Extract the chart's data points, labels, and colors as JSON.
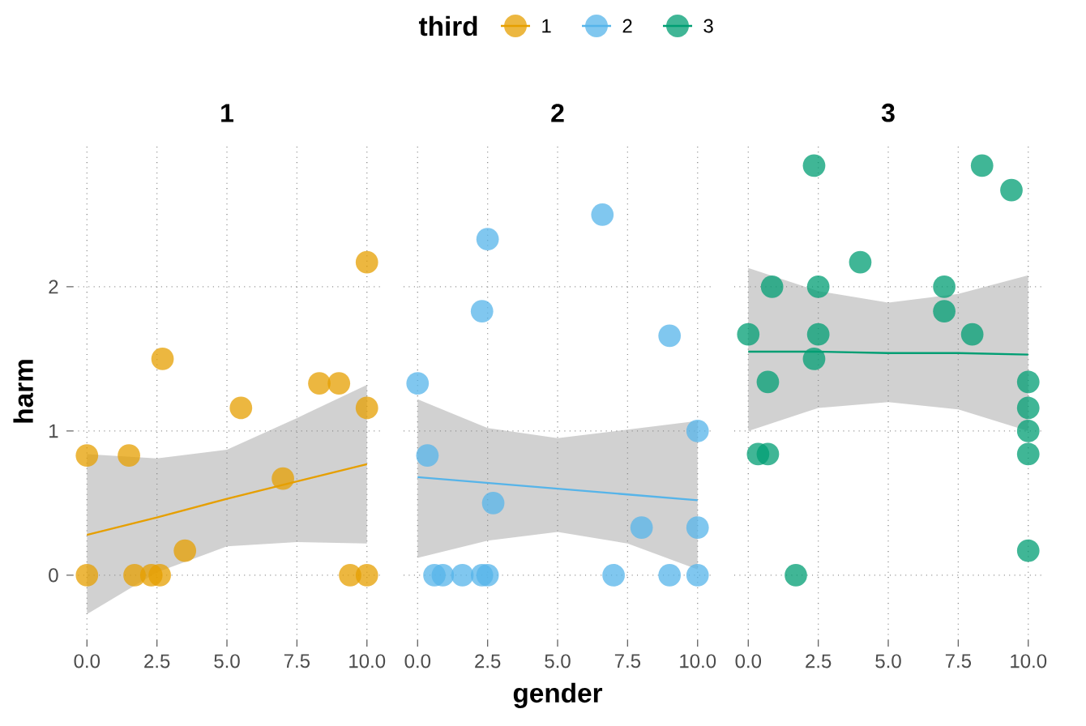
{
  "chart_data": [
    {
      "type": "scatter",
      "title": "1",
      "ylabel": "harm",
      "legend_title": "third",
      "legend": "top",
      "grid": true,
      "xlim": [
        -0.5,
        10.5
      ],
      "ylim": [
        -0.45,
        3.0
      ],
      "xticks": [
        {
          "value": 0,
          "label": "0.0"
        },
        {
          "value": 2.5,
          "label": "2.5"
        },
        {
          "value": 5,
          "label": "5.0"
        },
        {
          "value": 7.5,
          "label": "7.5"
        },
        {
          "value": 10,
          "label": "10.0"
        }
      ],
      "yticks": [
        0,
        1,
        2
      ],
      "series": [
        {
          "name": "1",
          "marker": "circle",
          "color": "#e69f00",
          "x": [
            0,
            0,
            1.5,
            1.7,
            2.3,
            2.6,
            2.7,
            3.5,
            5.5,
            7.0,
            8.3,
            9.0,
            9.4,
            10,
            10,
            10
          ],
          "values": [
            0,
            0.83,
            0.83,
            0,
            0,
            0,
            1.5,
            0.17,
            1.16,
            0.67,
            1.33,
            1.33,
            0,
            0,
            2.17,
            1.16
          ]
        },
        {
          "type": "line",
          "marker": "none",
          "color": "#e69f00",
          "x": [
            0,
            2.5,
            5,
            7.5,
            10
          ],
          "values": [
            0.28,
            0.4,
            0.53,
            0.65,
            0.77
          ],
          "lower": [
            -0.27,
            0.02,
            0.2,
            0.23,
            0.22
          ],
          "upper": [
            0.84,
            0.81,
            0.87,
            1.09,
            1.32
          ]
        }
      ]
    },
    {
      "type": "scatter",
      "title": "2",
      "xlabel": "gender",
      "legend": "top",
      "grid": true,
      "tick_labels": "x",
      "xlim": [
        -0.5,
        10.5
      ],
      "ylim": [
        -0.45,
        3.0
      ],
      "xticks": [
        {
          "value": 0,
          "label": "0.0"
        },
        {
          "value": 2.5,
          "label": "2.5"
        },
        {
          "value": 5,
          "label": "5.0"
        },
        {
          "value": 7.5,
          "label": "7.5"
        },
        {
          "value": 10,
          "label": "10.0"
        }
      ],
      "yticks": [
        0,
        1,
        2
      ],
      "series": [
        {
          "name": "2",
          "marker": "circle",
          "color": "#56b4e9",
          "x": [
            0,
            0.35,
            0.6,
            0.9,
            1.6,
            2.3,
            2.5,
            2.3,
            2.5,
            2.7,
            6.6,
            7.0,
            8.0,
            9.0,
            9.0,
            10,
            10,
            10
          ],
          "values": [
            1.33,
            0.83,
            0,
            0,
            0,
            0,
            0,
            1.83,
            2.33,
            0.5,
            2.5,
            0,
            0.33,
            1.66,
            0,
            0,
            0.33,
            1.0
          ]
        },
        {
          "type": "line",
          "marker": "none",
          "color": "#56b4e9",
          "x": [
            0,
            2.5,
            5,
            7.5,
            10
          ],
          "values": [
            0.68,
            0.64,
            0.6,
            0.56,
            0.52
          ],
          "lower": [
            0.12,
            0.24,
            0.3,
            0.22,
            0.04
          ],
          "upper": [
            1.22,
            1.02,
            0.95,
            1.01,
            1.07
          ]
        }
      ]
    },
    {
      "type": "scatter",
      "title": "3",
      "legend": "top",
      "grid": true,
      "tick_labels": "x",
      "xlim": [
        -0.5,
        10.5
      ],
      "ylim": [
        -0.45,
        3.0
      ],
      "xticks": [
        {
          "value": 0,
          "label": "0.0"
        },
        {
          "value": 2.5,
          "label": "2.5"
        },
        {
          "value": 5,
          "label": "5.0"
        },
        {
          "value": 7.5,
          "label": "7.5"
        },
        {
          "value": 10,
          "label": "10.0"
        }
      ],
      "yticks": [
        0,
        1,
        2
      ],
      "series": [
        {
          "name": "3",
          "marker": "circle",
          "color": "#009e73",
          "x": [
            0,
            0.85,
            0.7,
            0.35,
            0.7,
            1.7,
            2.35,
            2.5,
            2.5,
            2.35,
            4.0,
            7.0,
            7.0,
            8.0,
            8.35,
            9.4,
            10,
            10,
            10,
            10,
            10
          ],
          "values": [
            1.67,
            2.0,
            1.34,
            0.84,
            0.84,
            0,
            2.84,
            2.0,
            1.67,
            1.5,
            2.17,
            2.0,
            1.83,
            1.67,
            2.84,
            2.67,
            1.34,
            1.16,
            1.0,
            0.84,
            0.17
          ]
        },
        {
          "type": "line",
          "marker": "none",
          "color": "#009e73",
          "x": [
            0,
            2.5,
            5,
            7.5,
            10
          ],
          "values": [
            1.55,
            1.55,
            1.54,
            1.54,
            1.53
          ],
          "lower": [
            1.0,
            1.16,
            1.2,
            1.15,
            1.0
          ],
          "upper": [
            2.13,
            1.97,
            1.89,
            1.95,
            2.08
          ]
        }
      ]
    }
  ]
}
